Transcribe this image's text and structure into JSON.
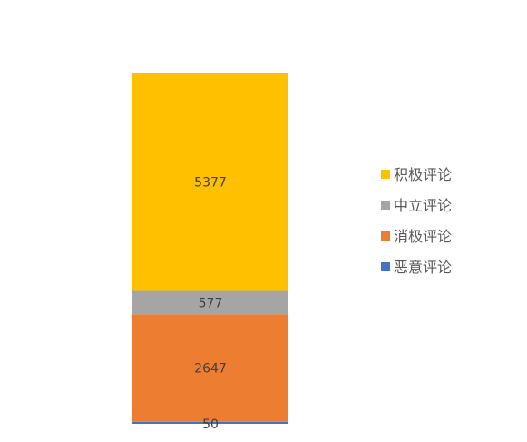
{
  "chart_data": {
    "type": "bar",
    "stacked": true,
    "categories": [
      ""
    ],
    "series": [
      {
        "name": "恶意评论",
        "values": [
          50
        ],
        "color": "#4472C4"
      },
      {
        "name": "消极评论",
        "values": [
          2647
        ],
        "color": "#ED7D31"
      },
      {
        "name": "中立评论",
        "values": [
          577
        ],
        "color": "#A5A5A5"
      },
      {
        "name": "积极评论",
        "values": [
          5377
        ],
        "color": "#FFC000"
      }
    ],
    "data_labels": true,
    "legend_position": "right",
    "legend_order": [
      "积极评论",
      "中立评论",
      "消极评论",
      "恶意评论"
    ],
    "grid": false
  }
}
